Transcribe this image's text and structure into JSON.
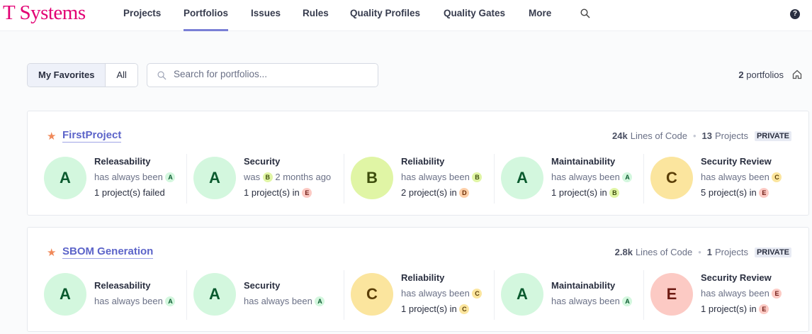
{
  "header": {
    "logo": "T Systems",
    "nav": [
      {
        "label": "Projects"
      },
      {
        "label": "Portfolios",
        "active": true
      },
      {
        "label": "Issues"
      },
      {
        "label": "Rules"
      },
      {
        "label": "Quality Profiles"
      },
      {
        "label": "Quality Gates"
      },
      {
        "label": "More"
      }
    ],
    "help": "?"
  },
  "filters": {
    "favorites": "My Favorites",
    "all": "All",
    "search_placeholder": "Search for portfolios...",
    "count": "2",
    "count_label": "portfolios"
  },
  "portfolios": [
    {
      "name": "FirstProject",
      "loc": "24k",
      "loc_label": "Lines of Code",
      "projects": "13",
      "projects_label": "Projects",
      "visibility": "PRIVATE",
      "measures": [
        {
          "title": "Releasability",
          "grade": "A",
          "line1": "has always been",
          "line1_grade": "A",
          "line2": "1 project(s) failed"
        },
        {
          "title": "Security",
          "grade": "A",
          "line1": "was",
          "line1_grade": "B",
          "line1_suffix": "2 months ago",
          "line2": "1 project(s) in",
          "line2_grade": "E"
        },
        {
          "title": "Reliability",
          "grade": "B",
          "line1": "has always been",
          "line1_grade": "B",
          "line2": "2 project(s) in",
          "line2_grade": "D"
        },
        {
          "title": "Maintainability",
          "grade": "A",
          "line1": "has always been",
          "line1_grade": "A",
          "line2": "1 project(s) in",
          "line2_grade": "B"
        },
        {
          "title": "Security Review",
          "grade": "C",
          "line1": "has always been",
          "line1_grade": "C",
          "line2": "5 project(s) in",
          "line2_grade": "E"
        }
      ]
    },
    {
      "name": "SBOM Generation",
      "loc": "2.8k",
      "loc_label": "Lines of Code",
      "projects": "1",
      "projects_label": "Projects",
      "visibility": "PRIVATE",
      "measures": [
        {
          "title": "Releasability",
          "grade": "A",
          "line1": "has always been",
          "line1_grade": "A"
        },
        {
          "title": "Security",
          "grade": "A",
          "line1": "has always been",
          "line1_grade": "A"
        },
        {
          "title": "Reliability",
          "grade": "C",
          "line1": "has always been",
          "line1_grade": "C",
          "line2": "1 project(s) in",
          "line2_grade": "C"
        },
        {
          "title": "Maintainability",
          "grade": "A",
          "line1": "has always been",
          "line1_grade": "A"
        },
        {
          "title": "Security Review",
          "grade": "E",
          "line1": "has always been",
          "line1_grade": "E",
          "line2": "1 project(s) in",
          "line2_grade": "E"
        }
      ]
    }
  ]
}
